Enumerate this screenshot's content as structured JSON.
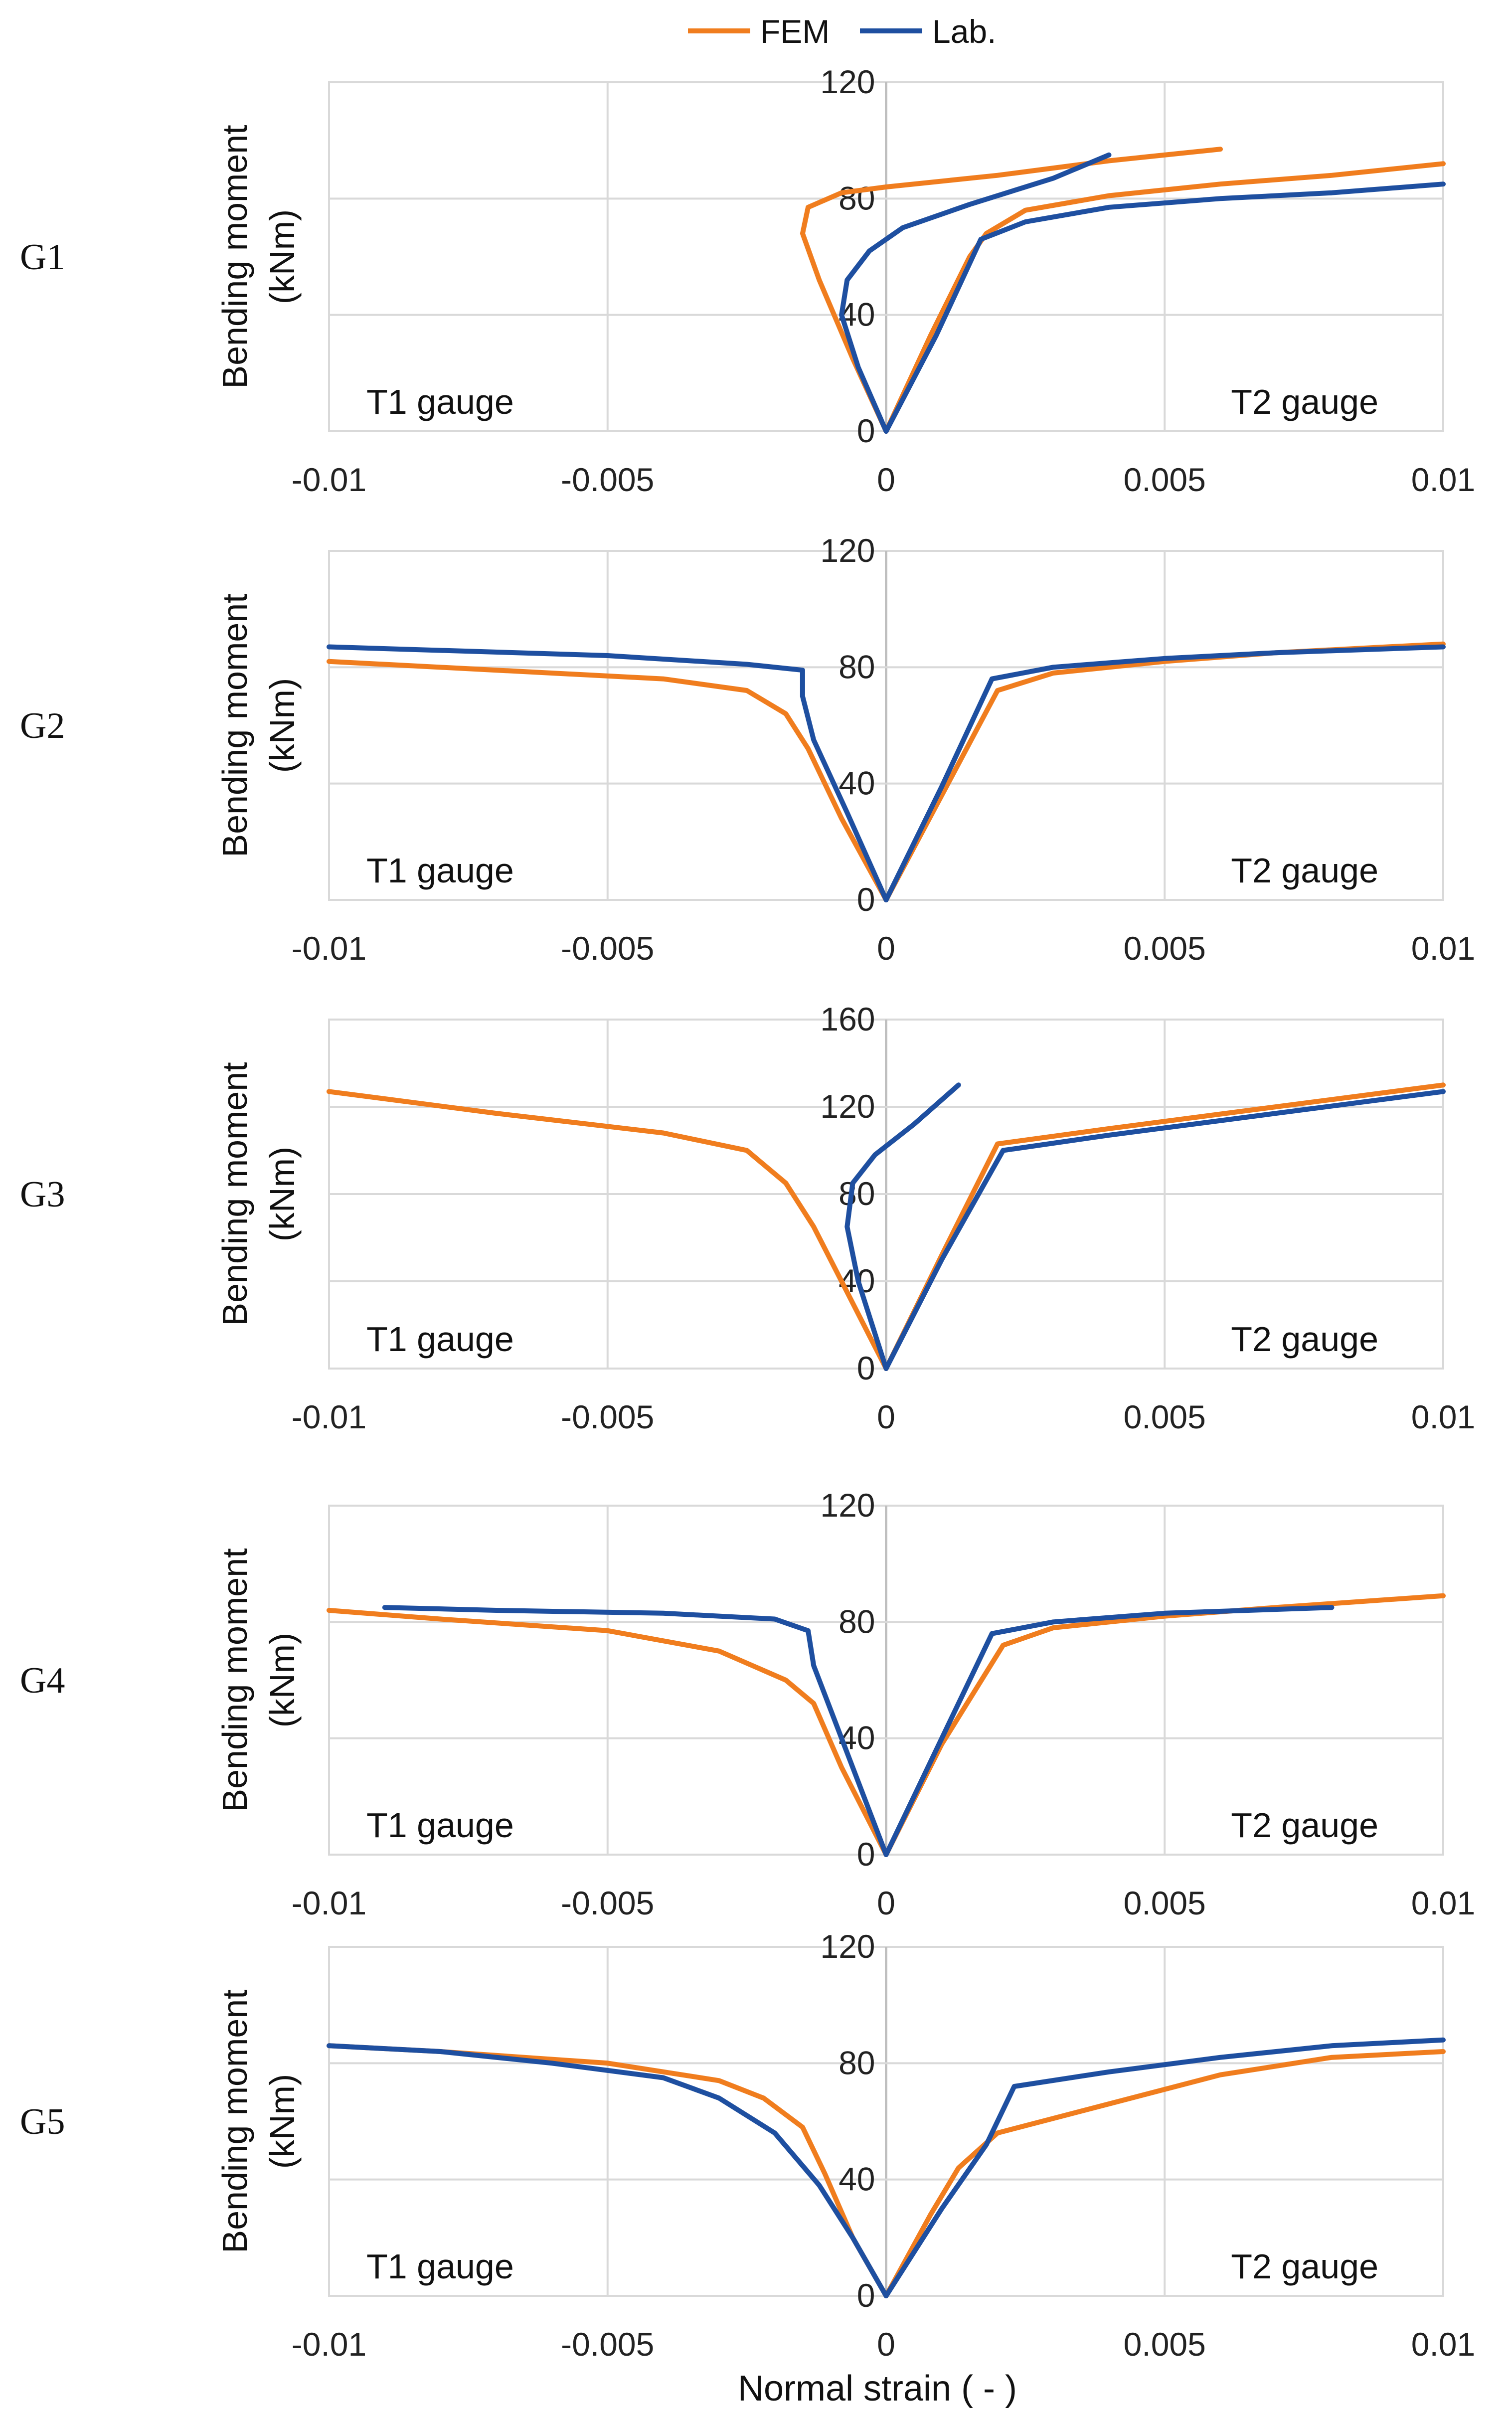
{
  "legend": [
    {
      "name": "FEM",
      "color": "#F07D1E"
    },
    {
      "name": "Lab.",
      "color": "#1E4FA0"
    }
  ],
  "x_axis_title": "Normal strain ( - )",
  "chart_data": [
    {
      "type": "line",
      "panel_label": "G1",
      "ylabel_line1": "Bending moment",
      "ylabel_line2": "(kNm)",
      "xlim": [
        -0.01,
        0.01
      ],
      "ylim": [
        0,
        120
      ],
      "xticks": [
        -0.01,
        -0.005,
        0,
        0.005,
        0.01
      ],
      "xtick_labels": [
        "-0.01",
        "-0.005",
        "0",
        "0.005",
        "0.01"
      ],
      "yticks": [
        0,
        40,
        80,
        120
      ],
      "ytick_labels": [
        "0",
        "40",
        "80",
        "120"
      ],
      "left_annotation": "T1 gauge",
      "right_annotation": "T2 gauge",
      "series": [
        {
          "name": "FEM",
          "color": "#F07D1E",
          "points": [
            [
              0,
              0
            ],
            [
              -0.0006,
              25
            ],
            [
              -0.0012,
              52
            ],
            [
              -0.0015,
              68
            ],
            [
              -0.0014,
              77
            ],
            [
              -0.0008,
              82
            ],
            [
              0,
              84
            ],
            [
              0.002,
              88
            ],
            [
              0.004,
              93
            ],
            [
              0.006,
              97
            ]
          ]
        },
        {
          "name": "FEM",
          "color": "#F07D1E",
          "points": [
            [
              0,
              0
            ],
            [
              0.0008,
              33
            ],
            [
              0.0015,
              60
            ],
            [
              0.0018,
              68
            ],
            [
              0.0025,
              76
            ],
            [
              0.004,
              81
            ],
            [
              0.006,
              85
            ],
            [
              0.008,
              88
            ],
            [
              0.01,
              92
            ]
          ]
        },
        {
          "name": "Lab.",
          "color": "#1E4FA0",
          "points": [
            [
              0,
              0
            ],
            [
              -0.0005,
              22
            ],
            [
              -0.0008,
              40
            ],
            [
              -0.0007,
              52
            ],
            [
              -0.0003,
              62
            ],
            [
              0.0003,
              70
            ],
            [
              0.0015,
              78
            ],
            [
              0.003,
              87
            ],
            [
              0.004,
              95
            ]
          ]
        },
        {
          "name": "Lab.",
          "color": "#1E4FA0",
          "points": [
            [
              0,
              0
            ],
            [
              0.0009,
              33
            ],
            [
              0.0017,
              66
            ],
            [
              0.0025,
              72
            ],
            [
              0.004,
              77
            ],
            [
              0.006,
              80
            ],
            [
              0.008,
              82
            ],
            [
              0.01,
              85
            ]
          ]
        }
      ]
    },
    {
      "type": "line",
      "panel_label": "G2",
      "ylabel_line1": "Bending moment",
      "ylabel_line2": "(kNm)",
      "xlim": [
        -0.01,
        0.01
      ],
      "ylim": [
        0,
        120
      ],
      "xticks": [
        -0.01,
        -0.005,
        0,
        0.005,
        0.01
      ],
      "xtick_labels": [
        "-0.01",
        "-0.005",
        "0",
        "0.005",
        "0.01"
      ],
      "yticks": [
        0,
        40,
        80,
        120
      ],
      "ytick_labels": [
        "0",
        "40",
        "80",
        "120"
      ],
      "left_annotation": "T1 gauge",
      "right_annotation": "T2 gauge",
      "series": [
        {
          "name": "FEM",
          "color": "#F07D1E",
          "points": [
            [
              0,
              0
            ],
            [
              -0.0008,
              28
            ],
            [
              -0.0014,
              52
            ],
            [
              -0.0018,
              64
            ],
            [
              -0.0025,
              72
            ],
            [
              -0.004,
              76
            ],
            [
              -0.007,
              79
            ],
            [
              -0.01,
              82
            ]
          ]
        },
        {
          "name": "FEM",
          "color": "#F07D1E",
          "points": [
            [
              0,
              0
            ],
            [
              0.001,
              36
            ],
            [
              0.002,
              72
            ],
            [
              0.003,
              78
            ],
            [
              0.005,
              82
            ],
            [
              0.007,
              85
            ],
            [
              0.01,
              88
            ]
          ]
        },
        {
          "name": "Lab.",
          "color": "#1E4FA0",
          "points": [
            [
              0,
              0
            ],
            [
              -0.0007,
              30
            ],
            [
              -0.0013,
              55
            ],
            [
              -0.0015,
              70
            ],
            [
              -0.0015,
              79
            ],
            [
              -0.0025,
              81
            ],
            [
              -0.005,
              84
            ],
            [
              -0.01,
              87
            ]
          ]
        },
        {
          "name": "Lab.",
          "color": "#1E4FA0",
          "points": [
            [
              0,
              0
            ],
            [
              0.001,
              39
            ],
            [
              0.0019,
              76
            ],
            [
              0.003,
              80
            ],
            [
              0.005,
              83
            ],
            [
              0.007,
              85
            ],
            [
              0.01,
              87
            ]
          ]
        }
      ]
    },
    {
      "type": "line",
      "panel_label": "G3",
      "ylabel_line1": "Bending moment",
      "ylabel_line2": "(kNm)",
      "xlim": [
        -0.01,
        0.01
      ],
      "ylim": [
        0,
        160
      ],
      "xticks": [
        -0.01,
        -0.005,
        0,
        0.005,
        0.01
      ],
      "xtick_labels": [
        "-0.01",
        "-0.005",
        "0",
        "0.005",
        "0.01"
      ],
      "yticks": [
        0,
        40,
        80,
        120,
        160
      ],
      "ytick_labels": [
        "0",
        "40",
        "80",
        "120",
        "160"
      ],
      "left_annotation": "T1 gauge",
      "right_annotation": "T2 gauge",
      "series": [
        {
          "name": "FEM",
          "color": "#F07D1E",
          "points": [
            [
              0,
              0
            ],
            [
              -0.0007,
              35
            ],
            [
              -0.0013,
              65
            ],
            [
              -0.0018,
              85
            ],
            [
              -0.0025,
              100
            ],
            [
              -0.004,
              108
            ],
            [
              -0.007,
              117
            ],
            [
              -0.01,
              127
            ]
          ]
        },
        {
          "name": "FEM",
          "color": "#F07D1E",
          "points": [
            [
              0,
              0
            ],
            [
              0.001,
              52
            ],
            [
              0.002,
              103
            ],
            [
              0.004,
              110
            ],
            [
              0.007,
              120
            ],
            [
              0.01,
              130
            ]
          ]
        },
        {
          "name": "Lab.",
          "color": "#1E4FA0",
          "points": [
            [
              0,
              0
            ],
            [
              -0.0005,
              40
            ],
            [
              -0.0007,
              65
            ],
            [
              -0.0006,
              85
            ],
            [
              -0.0002,
              98
            ],
            [
              0.0005,
              112
            ],
            [
              0.0013,
              130
            ]
          ]
        },
        {
          "name": "Lab.",
          "color": "#1E4FA0",
          "points": [
            [
              0,
              0
            ],
            [
              0.001,
              50
            ],
            [
              0.0021,
              100
            ],
            [
              0.004,
              107
            ],
            [
              0.007,
              117
            ],
            [
              0.01,
              127
            ]
          ]
        }
      ]
    },
    {
      "type": "line",
      "panel_label": "G4",
      "ylabel_line1": "Bending moment",
      "ylabel_line2": "(kNm)",
      "xlim": [
        -0.01,
        0.01
      ],
      "ylim": [
        0,
        120
      ],
      "xticks": [
        -0.01,
        -0.005,
        0,
        0.005,
        0.01
      ],
      "xtick_labels": [
        "-0.01",
        "-0.005",
        "0",
        "0.005",
        "0.01"
      ],
      "yticks": [
        0,
        40,
        80,
        120
      ],
      "ytick_labels": [
        "0",
        "40",
        "80",
        "120"
      ],
      "left_annotation": "T1 gauge",
      "right_annotation": "T2 gauge",
      "series": [
        {
          "name": "FEM",
          "color": "#F07D1E",
          "points": [
            [
              0,
              0
            ],
            [
              -0.0008,
              30
            ],
            [
              -0.0013,
              52
            ],
            [
              -0.0018,
              60
            ],
            [
              -0.003,
              70
            ],
            [
              -0.005,
              77
            ],
            [
              -0.008,
              81
            ],
            [
              -0.01,
              84
            ]
          ]
        },
        {
          "name": "FEM",
          "color": "#F07D1E",
          "points": [
            [
              0,
              0
            ],
            [
              0.001,
              38
            ],
            [
              0.0021,
              72
            ],
            [
              0.003,
              78
            ],
            [
              0.005,
              82
            ],
            [
              0.007,
              85
            ],
            [
              0.01,
              89
            ]
          ]
        },
        {
          "name": "Lab.",
          "color": "#1E4FA0",
          "points": [
            [
              0,
              0
            ],
            [
              -0.0007,
              35
            ],
            [
              -0.0013,
              65
            ],
            [
              -0.0014,
              77
            ],
            [
              -0.002,
              81
            ],
            [
              -0.004,
              83
            ],
            [
              -0.007,
              84
            ],
            [
              -0.009,
              85
            ]
          ]
        },
        {
          "name": "Lab.",
          "color": "#1E4FA0",
          "points": [
            [
              0,
              0
            ],
            [
              0.001,
              40
            ],
            [
              0.0019,
              76
            ],
            [
              0.003,
              80
            ],
            [
              0.005,
              83
            ],
            [
              0.008,
              85
            ]
          ]
        }
      ]
    },
    {
      "type": "line",
      "panel_label": "G5",
      "ylabel_line1": "Bending moment",
      "ylabel_line2": "(kNm)",
      "xlim": [
        -0.01,
        0.01
      ],
      "ylim": [
        0,
        120
      ],
      "xticks": [
        -0.01,
        -0.005,
        0,
        0.005,
        0.01
      ],
      "xtick_labels": [
        "-0.01",
        "-0.005",
        "0",
        "0.005",
        "0.01"
      ],
      "yticks": [
        0,
        40,
        80,
        120
      ],
      "ytick_labels": [
        "0",
        "40",
        "80",
        "120"
      ],
      "left_annotation": "T1 gauge",
      "right_annotation": "T2 gauge",
      "series": [
        {
          "name": "FEM",
          "color": "#F07D1E",
          "points": [
            [
              0,
              0
            ],
            [
              -0.0006,
              20
            ],
            [
              -0.0011,
              42
            ],
            [
              -0.0015,
              58
            ],
            [
              -0.0022,
              68
            ],
            [
              -0.003,
              74
            ],
            [
              -0.005,
              80
            ],
            [
              -0.008,
              84
            ],
            [
              -0.01,
              86
            ]
          ]
        },
        {
          "name": "FEM",
          "color": "#F07D1E",
          "points": [
            [
              0,
              0
            ],
            [
              0.0008,
              28
            ],
            [
              0.0013,
              44
            ],
            [
              0.002,
              56
            ],
            [
              0.004,
              66
            ],
            [
              0.006,
              76
            ],
            [
              0.008,
              82
            ],
            [
              0.01,
              84
            ]
          ]
        },
        {
          "name": "Lab.",
          "color": "#1E4FA0",
          "points": [
            [
              0,
              0
            ],
            [
              -0.0006,
              20
            ],
            [
              -0.0012,
              38
            ],
            [
              -0.002,
              56
            ],
            [
              -0.003,
              68
            ],
            [
              -0.004,
              75
            ],
            [
              -0.006,
              80
            ],
            [
              -0.008,
              84
            ],
            [
              -0.01,
              86
            ]
          ]
        },
        {
          "name": "Lab.",
          "color": "#1E4FA0",
          "points": [
            [
              0,
              0
            ],
            [
              0.001,
              30
            ],
            [
              0.0018,
              52
            ],
            [
              0.0023,
              72
            ],
            [
              0.004,
              77
            ],
            [
              0.006,
              82
            ],
            [
              0.008,
              86
            ],
            [
              0.01,
              88
            ]
          ]
        }
      ]
    }
  ]
}
